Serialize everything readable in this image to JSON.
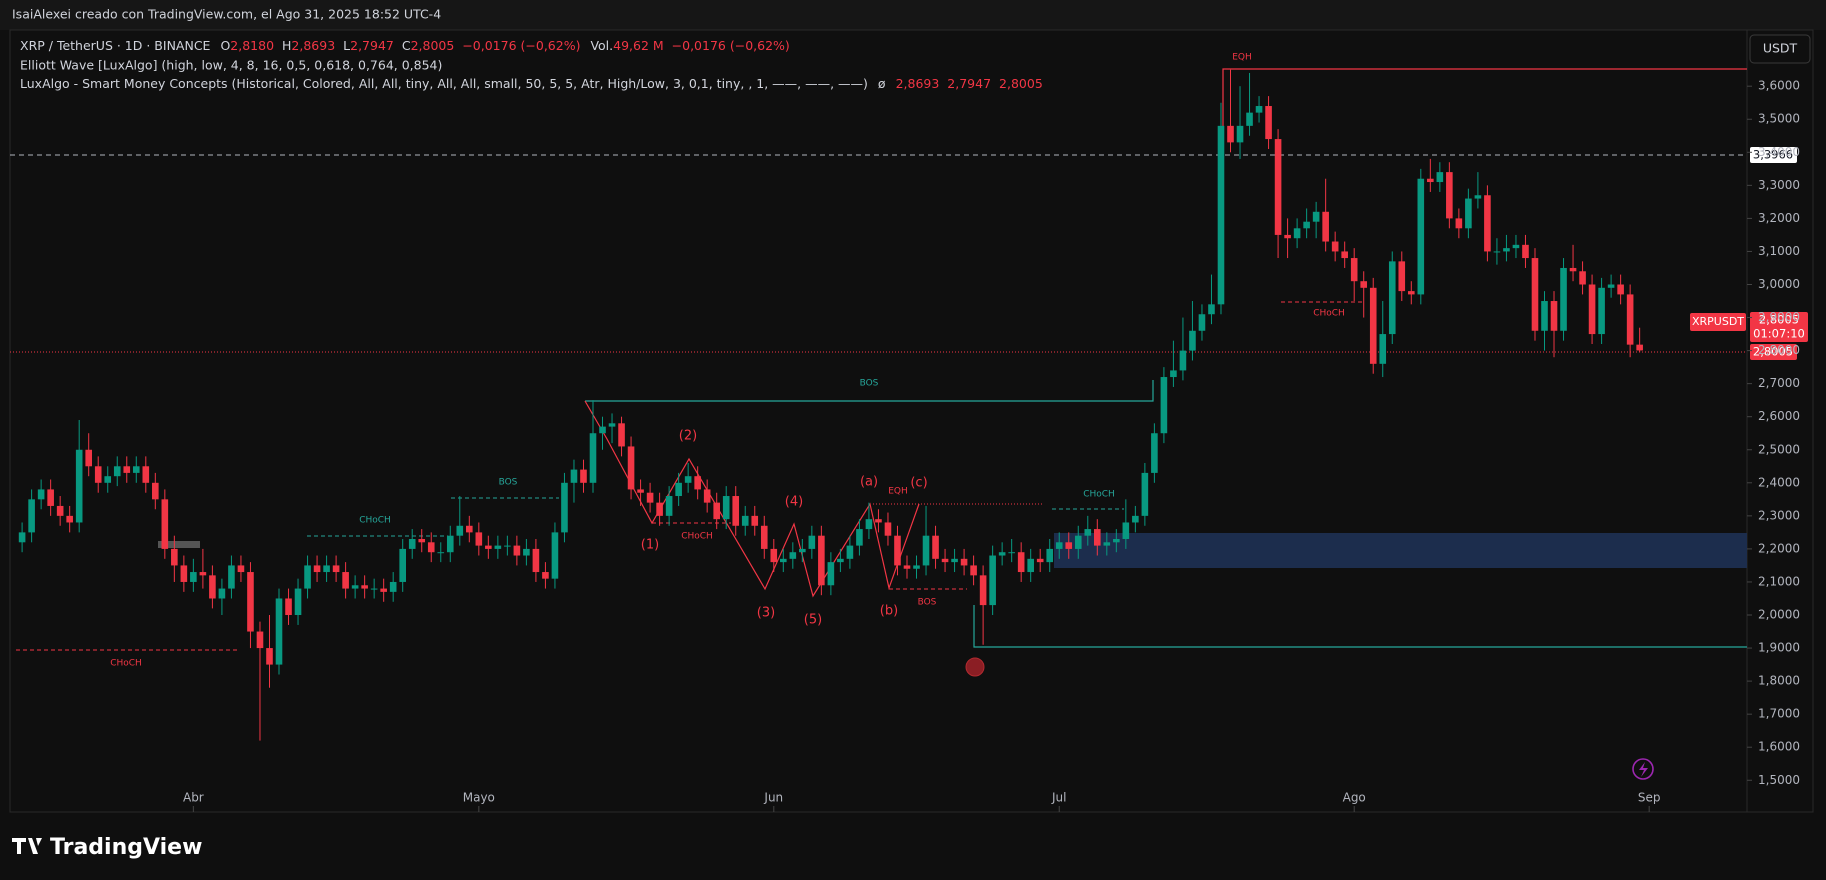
{
  "header": "IsaiAlexei creado con TradingView.com, el Ago 31, 2025 18:52 UTC-4",
  "legend": {
    "symbol": "XRP / TetherUS · 1D · BINANCE",
    "o": "O",
    "open": "2,8180",
    "h": "H",
    "high": "2,8693",
    "l": "L",
    "low": "2,7947",
    "c": "C",
    "close": "2,8005",
    "change": "−0,0176 (−0,62%)",
    "vol": "Vol.",
    "volume": "49,62 M",
    "vol_change": "−0,0176 (−0,62%)",
    "indicator1": "Elliott Wave [LuxAlgo] (high, low, 4, 8, 16, 0,5, 0,618, 0,764, 0,854)",
    "indicator2": "LuxAlgo - Smart Money Concepts (Historical, Colored, All, All, tiny, All, All, small, 50, 5, 5, Atr, High/Low, 3, 0,1, tiny, , 1, ——, ——, ——)",
    "indicator2_sym": "ø",
    "indicator2_high": "2,8693",
    "indicator2_low": "2,7947",
    "indicator2_close": "2,8005"
  },
  "currency": "USDT",
  "price_labels": {
    "level": "3,3966",
    "symbol": "XRPUSDT",
    "last": "2,8005",
    "countdown": "01:07:10",
    "last_line": "2,8005"
  },
  "brand": "TradingView",
  "chart_data": {
    "type": "candlestick",
    "up_color": "#089981",
    "down_color": "#f23645",
    "grid": false,
    "xtick_labels": [
      "Abr",
      "Mayo",
      "Jun",
      "Jul",
      "Ago",
      "Sep"
    ],
    "ylim": [
      1.404,
      3.77
    ],
    "yticks": [
      {
        "value": 1.5,
        "label": "1,5000"
      },
      {
        "value": 1.6,
        "label": "1,6000"
      },
      {
        "value": 1.7,
        "label": "1,7000"
      },
      {
        "value": 1.8,
        "label": "1,8000"
      },
      {
        "value": 1.9,
        "label": "1,9000"
      },
      {
        "value": 2.0,
        "label": "2,0000"
      },
      {
        "value": 2.1,
        "label": "2,1000"
      },
      {
        "value": 2.2,
        "label": "2,2000"
      },
      {
        "value": 2.3,
        "label": "2,3000"
      },
      {
        "value": 2.4,
        "label": "2,4000"
      },
      {
        "value": 2.5,
        "label": "2,5000"
      },
      {
        "value": 2.6,
        "label": "2,6000"
      },
      {
        "value": 2.7,
        "label": "2,7000"
      },
      {
        "value": 2.8,
        "label": "2,8000"
      },
      {
        "value": 2.9,
        "label": "2,9000"
      },
      {
        "value": 3.0,
        "label": "3,0000"
      },
      {
        "value": 3.1,
        "label": "3,1000"
      },
      {
        "value": 3.2,
        "label": "3,2000"
      },
      {
        "value": 3.3,
        "label": "3,3000"
      },
      {
        "value": 3.4,
        "label": "3,4000"
      },
      {
        "value": 3.5,
        "label": "3,5000"
      },
      {
        "value": 3.6,
        "label": "3,6000"
      }
    ],
    "annotations": [
      "EQH",
      "BOS",
      "CHoCH",
      "CHoCH",
      "BOS",
      "CHoCH",
      "EQH",
      "BOS",
      "CHoCH",
      "CHoCH",
      "(1)",
      "(2)",
      "(3)",
      "(4)",
      "(5)",
      "(a)",
      "(b)",
      "(c)"
    ],
    "ohlc": [
      [
        2.22,
        2.28,
        2.19,
        2.25
      ],
      [
        2.25,
        2.38,
        2.22,
        2.35
      ],
      [
        2.35,
        2.41,
        2.32,
        2.38
      ],
      [
        2.38,
        2.41,
        2.3,
        2.33
      ],
      [
        2.33,
        2.36,
        2.27,
        2.3
      ],
      [
        2.3,
        2.33,
        2.25,
        2.28
      ],
      [
        2.28,
        2.59,
        2.25,
        2.5
      ],
      [
        2.5,
        2.55,
        2.42,
        2.45
      ],
      [
        2.45,
        2.48,
        2.37,
        2.4
      ],
      [
        2.4,
        2.45,
        2.37,
        2.42
      ],
      [
        2.42,
        2.48,
        2.39,
        2.45
      ],
      [
        2.45,
        2.48,
        2.4,
        2.43
      ],
      [
        2.43,
        2.48,
        2.4,
        2.45
      ],
      [
        2.45,
        2.48,
        2.37,
        2.4
      ],
      [
        2.4,
        2.43,
        2.32,
        2.35
      ],
      [
        2.35,
        2.38,
        2.17,
        2.2
      ],
      [
        2.2,
        2.24,
        2.1,
        2.15
      ],
      [
        2.15,
        2.18,
        2.07,
        2.1
      ],
      [
        2.1,
        2.17,
        2.07,
        2.13
      ],
      [
        2.13,
        2.2,
        2.08,
        2.12
      ],
      [
        2.12,
        2.15,
        2.02,
        2.05
      ],
      [
        2.05,
        2.11,
        2.0,
        2.08
      ],
      [
        2.08,
        2.18,
        2.05,
        2.15
      ],
      [
        2.15,
        2.18,
        2.1,
        2.13
      ],
      [
        2.13,
        2.16,
        1.9,
        1.95
      ],
      [
        1.95,
        1.98,
        1.62,
        1.9
      ],
      [
        1.9,
        2.0,
        1.78,
        1.85
      ],
      [
        1.85,
        2.08,
        1.82,
        2.05
      ],
      [
        2.05,
        2.08,
        1.97,
        2.0
      ],
      [
        2.0,
        2.11,
        1.97,
        2.08
      ],
      [
        2.08,
        2.18,
        2.05,
        2.15
      ],
      [
        2.15,
        2.18,
        2.1,
        2.13
      ],
      [
        2.13,
        2.18,
        2.1,
        2.15
      ],
      [
        2.15,
        2.18,
        2.1,
        2.13
      ],
      [
        2.13,
        2.16,
        2.05,
        2.08
      ],
      [
        2.08,
        2.12,
        2.05,
        2.09
      ],
      [
        2.09,
        2.12,
        2.05,
        2.08
      ],
      [
        2.08,
        2.11,
        2.05,
        2.08
      ],
      [
        2.08,
        2.11,
        2.04,
        2.07
      ],
      [
        2.07,
        2.13,
        2.04,
        2.1
      ],
      [
        2.1,
        2.23,
        2.07,
        2.2
      ],
      [
        2.2,
        2.26,
        2.17,
        2.23
      ],
      [
        2.23,
        2.26,
        2.19,
        2.22
      ],
      [
        2.22,
        2.25,
        2.16,
        2.19
      ],
      [
        2.19,
        2.22,
        2.16,
        2.19
      ],
      [
        2.19,
        2.27,
        2.16,
        2.24
      ],
      [
        2.24,
        2.36,
        2.21,
        2.27
      ],
      [
        2.27,
        2.3,
        2.22,
        2.25
      ],
      [
        2.25,
        2.28,
        2.18,
        2.21
      ],
      [
        2.21,
        2.24,
        2.17,
        2.2
      ],
      [
        2.2,
        2.24,
        2.17,
        2.21
      ],
      [
        2.21,
        2.24,
        2.18,
        2.21
      ],
      [
        2.21,
        2.24,
        2.15,
        2.18
      ],
      [
        2.18,
        2.23,
        2.15,
        2.2
      ],
      [
        2.2,
        2.23,
        2.1,
        2.13
      ],
      [
        2.13,
        2.16,
        2.08,
        2.11
      ],
      [
        2.11,
        2.28,
        2.08,
        2.25
      ],
      [
        2.25,
        2.43,
        2.22,
        2.4
      ],
      [
        2.4,
        2.47,
        2.34,
        2.44
      ],
      [
        2.44,
        2.47,
        2.37,
        2.4
      ],
      [
        2.4,
        2.65,
        2.37,
        2.55
      ],
      [
        2.55,
        2.6,
        2.5,
        2.57
      ],
      [
        2.57,
        2.61,
        2.52,
        2.58
      ],
      [
        2.58,
        2.6,
        2.48,
        2.51
      ],
      [
        2.51,
        2.54,
        2.35,
        2.38
      ],
      [
        2.38,
        2.41,
        2.33,
        2.37
      ],
      [
        2.37,
        2.4,
        2.31,
        2.34
      ],
      [
        2.34,
        2.37,
        2.27,
        2.3
      ],
      [
        2.3,
        2.39,
        2.27,
        2.36
      ],
      [
        2.36,
        2.43,
        2.33,
        2.4
      ],
      [
        2.4,
        2.46,
        2.37,
        2.42
      ],
      [
        2.42,
        2.45,
        2.35,
        2.38
      ],
      [
        2.38,
        2.41,
        2.31,
        2.34
      ],
      [
        2.34,
        2.37,
        2.26,
        2.29
      ],
      [
        2.29,
        2.39,
        2.26,
        2.36
      ],
      [
        2.36,
        2.39,
        2.24,
        2.27
      ],
      [
        2.27,
        2.33,
        2.24,
        2.3
      ],
      [
        2.3,
        2.33,
        2.24,
        2.27
      ],
      [
        2.27,
        2.3,
        2.17,
        2.2
      ],
      [
        2.2,
        2.23,
        2.13,
        2.16
      ],
      [
        2.16,
        2.2,
        2.13,
        2.17
      ],
      [
        2.17,
        2.22,
        2.14,
        2.19
      ],
      [
        2.19,
        2.23,
        2.16,
        2.2
      ],
      [
        2.2,
        2.27,
        2.17,
        2.24
      ],
      [
        2.24,
        2.27,
        2.06,
        2.09
      ],
      [
        2.09,
        2.19,
        2.06,
        2.16
      ],
      [
        2.16,
        2.2,
        2.13,
        2.17
      ],
      [
        2.17,
        2.24,
        2.14,
        2.21
      ],
      [
        2.21,
        2.29,
        2.18,
        2.26
      ],
      [
        2.26,
        2.34,
        2.23,
        2.29
      ],
      [
        2.29,
        2.32,
        2.25,
        2.28
      ],
      [
        2.28,
        2.31,
        2.21,
        2.24
      ],
      [
        2.24,
        2.27,
        2.12,
        2.15
      ],
      [
        2.15,
        2.18,
        2.11,
        2.14
      ],
      [
        2.14,
        2.18,
        2.11,
        2.15
      ],
      [
        2.15,
        2.33,
        2.12,
        2.24
      ],
      [
        2.24,
        2.27,
        2.14,
        2.17
      ],
      [
        2.17,
        2.2,
        2.13,
        2.16
      ],
      [
        2.16,
        2.2,
        2.13,
        2.17
      ],
      [
        2.17,
        2.2,
        2.12,
        2.15
      ],
      [
        2.15,
        2.18,
        2.09,
        2.12
      ],
      [
        2.12,
        2.15,
        1.91,
        2.03
      ],
      [
        2.03,
        2.21,
        2.0,
        2.18
      ],
      [
        2.18,
        2.22,
        2.15,
        2.19
      ],
      [
        2.19,
        2.23,
        2.16,
        2.19
      ],
      [
        2.19,
        2.22,
        2.1,
        2.13
      ],
      [
        2.13,
        2.2,
        2.1,
        2.17
      ],
      [
        2.17,
        2.2,
        2.13,
        2.16
      ],
      [
        2.16,
        2.23,
        2.13,
        2.2
      ],
      [
        2.2,
        2.25,
        2.17,
        2.22
      ],
      [
        2.22,
        2.25,
        2.17,
        2.2
      ],
      [
        2.2,
        2.27,
        2.17,
        2.24
      ],
      [
        2.24,
        2.3,
        2.21,
        2.26
      ],
      [
        2.26,
        2.29,
        2.18,
        2.21
      ],
      [
        2.21,
        2.25,
        2.18,
        2.22
      ],
      [
        2.22,
        2.26,
        2.19,
        2.23
      ],
      [
        2.23,
        2.35,
        2.2,
        2.28
      ],
      [
        2.28,
        2.33,
        2.25,
        2.3
      ],
      [
        2.3,
        2.46,
        2.27,
        2.43
      ],
      [
        2.43,
        2.58,
        2.4,
        2.55
      ],
      [
        2.55,
        2.75,
        2.52,
        2.72
      ],
      [
        2.72,
        2.83,
        2.69,
        2.74
      ],
      [
        2.74,
        2.9,
        2.71,
        2.8
      ],
      [
        2.8,
        2.95,
        2.77,
        2.86
      ],
      [
        2.86,
        2.94,
        2.83,
        2.91
      ],
      [
        2.91,
        3.03,
        2.88,
        2.94
      ],
      [
        2.94,
        3.55,
        2.91,
        3.48
      ],
      [
        3.48,
        3.65,
        3.4,
        3.43
      ],
      [
        3.43,
        3.6,
        3.38,
        3.48
      ],
      [
        3.48,
        3.64,
        3.45,
        3.52
      ],
      [
        3.52,
        3.57,
        3.49,
        3.54
      ],
      [
        3.54,
        3.57,
        3.41,
        3.44
      ],
      [
        3.44,
        3.47,
        3.08,
        3.15
      ],
      [
        3.15,
        3.2,
        3.08,
        3.14
      ],
      [
        3.14,
        3.2,
        3.11,
        3.17
      ],
      [
        3.17,
        3.23,
        3.14,
        3.19
      ],
      [
        3.19,
        3.25,
        3.14,
        3.22
      ],
      [
        3.22,
        3.32,
        3.1,
        3.13
      ],
      [
        3.13,
        3.16,
        3.07,
        3.1
      ],
      [
        3.1,
        3.13,
        3.05,
        3.08
      ],
      [
        3.08,
        3.11,
        2.95,
        3.01
      ],
      [
        3.01,
        3.04,
        2.9,
        2.99
      ],
      [
        2.99,
        3.02,
        2.73,
        2.76
      ],
      [
        2.76,
        2.95,
        2.72,
        2.85
      ],
      [
        2.85,
        3.1,
        2.82,
        3.07
      ],
      [
        3.07,
        3.1,
        2.95,
        2.98
      ],
      [
        2.98,
        3.01,
        2.94,
        2.97
      ],
      [
        2.97,
        3.35,
        2.94,
        3.32
      ],
      [
        3.32,
        3.38,
        3.28,
        3.31
      ],
      [
        3.31,
        3.37,
        3.28,
        3.34
      ],
      [
        3.34,
        3.37,
        3.17,
        3.2
      ],
      [
        3.2,
        3.23,
        3.14,
        3.17
      ],
      [
        3.17,
        3.29,
        3.14,
        3.26
      ],
      [
        3.26,
        3.34,
        3.23,
        3.27
      ],
      [
        3.27,
        3.3,
        3.07,
        3.1
      ],
      [
        3.1,
        3.14,
        3.06,
        3.1
      ],
      [
        3.1,
        3.15,
        3.07,
        3.11
      ],
      [
        3.11,
        3.15,
        3.08,
        3.12
      ],
      [
        3.12,
        3.15,
        3.05,
        3.08
      ],
      [
        3.08,
        3.11,
        2.83,
        2.86
      ],
      [
        2.86,
        2.98,
        2.8,
        2.95
      ],
      [
        2.95,
        2.98,
        2.78,
        2.86
      ],
      [
        2.86,
        3.08,
        2.83,
        3.05
      ],
      [
        3.05,
        3.12,
        3.01,
        3.04
      ],
      [
        3.04,
        3.07,
        2.97,
        3.0
      ],
      [
        3.0,
        3.03,
        2.82,
        2.85
      ],
      [
        2.85,
        3.02,
        2.82,
        2.99
      ],
      [
        2.99,
        3.03,
        2.96,
        3.0
      ],
      [
        3.0,
        3.03,
        2.94,
        2.97
      ],
      [
        2.97,
        3.0,
        2.78,
        2.818
      ],
      [
        2.818,
        2.8693,
        2.7947,
        2.8005
      ]
    ]
  }
}
